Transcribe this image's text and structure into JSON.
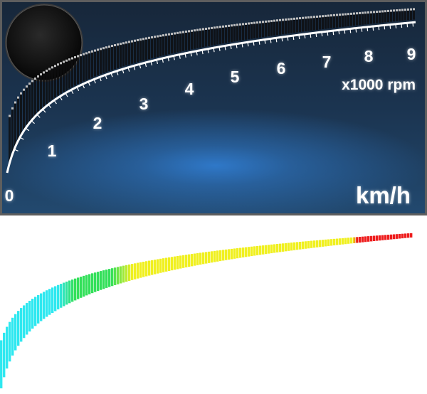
{
  "tachometer": {
    "scale_labels": [
      "0",
      "1",
      "2",
      "3",
      "4",
      "5",
      "6",
      "7",
      "8",
      "9"
    ],
    "rpm_unit_label": "x1000 rpm",
    "speed_unit_label": "km/h",
    "panel_color": "#1b3450",
    "glow_color": "#2f78c8",
    "knob_icon": "black-knob-icon"
  },
  "color_strip": {
    "zones": [
      {
        "color": "#2ee8f0"
      },
      {
        "color": "#33e05a"
      },
      {
        "color": "#f0f020"
      },
      {
        "color": "#ee1d1d"
      }
    ]
  }
}
